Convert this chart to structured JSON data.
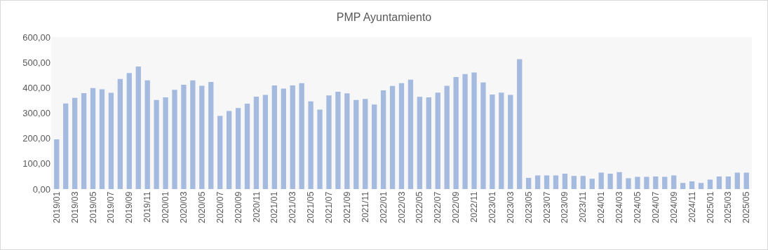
{
  "chart_data": {
    "type": "bar",
    "title": "PMP Ayuntamiento",
    "categories": [
      "2019/01",
      null,
      "2019/03",
      null,
      "2019/05",
      null,
      "2019/07",
      null,
      "2019/09",
      null,
      "2019/11",
      null,
      "2020/01",
      null,
      "2020/03",
      null,
      "2020/05",
      null,
      "2020/07",
      null,
      "2020/09",
      null,
      "2020/11",
      null,
      "2021/01",
      null,
      "2021/03",
      null,
      "2021/05",
      null,
      "2021/07",
      null,
      "2021/09",
      null,
      "2021/11",
      null,
      "2022/01",
      null,
      "2022/03",
      null,
      "2022/05",
      null,
      "2022/07",
      null,
      "2022/09",
      null,
      "2022/11",
      null,
      "2023/01",
      null,
      "2023/03",
      null,
      "2023/05",
      null,
      "2023/07",
      null,
      "2023/09",
      null,
      "2023/11",
      null,
      "2024/01",
      null,
      "2024/03",
      null,
      "2024/05",
      null,
      "2024/07",
      null,
      "2024/09",
      null,
      "2024/11",
      null,
      "2025/01",
      null,
      "2025/03",
      null,
      "2025/05"
    ],
    "values": [
      194,
      336,
      358,
      377,
      397,
      392,
      378,
      433,
      456,
      482,
      427,
      350,
      360,
      390,
      410,
      427,
      406,
      421,
      287,
      306,
      318,
      335,
      363,
      370,
      407,
      395,
      407,
      416,
      344,
      312,
      368,
      382,
      376,
      350,
      354,
      332,
      388,
      405,
      416,
      430,
      362,
      360,
      379,
      406,
      440,
      452,
      458,
      419,
      371,
      379,
      370,
      511,
      42,
      52,
      52,
      52,
      59,
      50,
      50,
      39,
      63,
      59,
      65,
      41,
      46,
      46,
      48,
      46,
      52,
      22,
      28,
      22,
      35,
      48,
      48,
      63,
      63
    ],
    "color": "#4472c4",
    "ylim": [
      0,
      600
    ],
    "yticks": [
      {
        "value": 0,
        "label": "0,00"
      },
      {
        "value": 100,
        "label": "100,00"
      },
      {
        "value": 200,
        "label": "200,00"
      },
      {
        "value": 300,
        "label": "300,00"
      },
      {
        "value": 400,
        "label": "400,00"
      },
      {
        "value": 500,
        "label": "500,00"
      },
      {
        "value": 600,
        "label": "600,00"
      }
    ],
    "grid": false
  }
}
